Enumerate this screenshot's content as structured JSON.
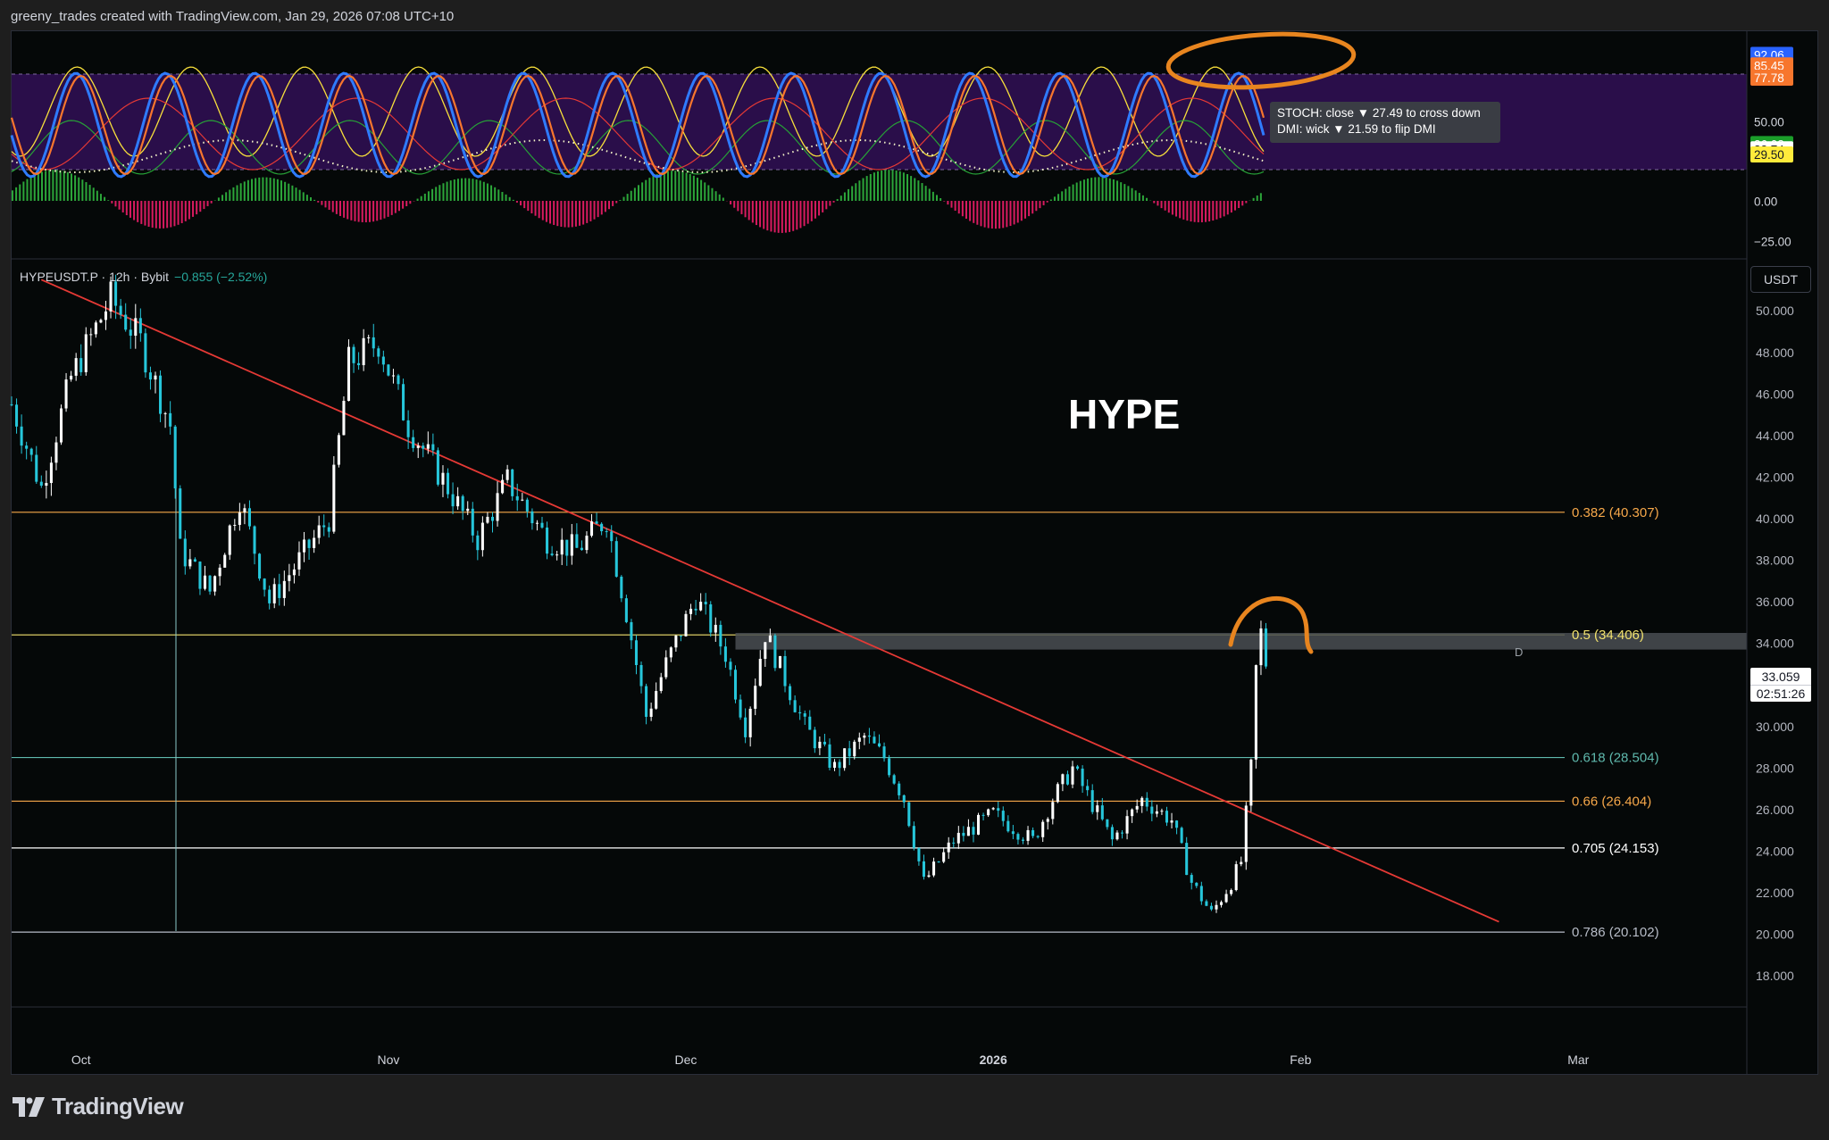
{
  "header": {
    "credit": "greeny_trades created with TradingView.com, Jan 29, 2026 07:08 UTC+10"
  },
  "symbol": {
    "name": "HYPEUSDT.P · 12h · Bybit",
    "change": "−0.855 (−2.52%)",
    "currency": "USDT",
    "last_price": "33.059",
    "countdown": "02:51:26"
  },
  "annotation": {
    "title": "HYPE",
    "marker": "D"
  },
  "tooltip": {
    "line1": "STOCH: close ▼ 27.49 to cross down",
    "line2": "DMI: wick ▼ 21.59 to flip DMI"
  },
  "oscillator_axis": {
    "labels": [
      {
        "value": 92.06,
        "text": "92.06",
        "bg": "#2962ff",
        "fg": "#ffffff"
      },
      {
        "value": 85.8,
        "text": "85.80",
        "bg": "#2962ff",
        "fg": "#ffffff"
      },
      {
        "value": 85.45,
        "text": "85.45",
        "bg": "#f7762d",
        "fg": "#ffffff"
      },
      {
        "value": 77.78,
        "text": "77.78",
        "bg": "#f7762d",
        "fg": "#ffffff"
      },
      {
        "value": 50.0,
        "text": "50.00",
        "bg": "",
        "fg": "#d1d4dc"
      },
      {
        "value": 36.08,
        "text": "36.08",
        "bg": "#1b9e2a",
        "fg": "#ffffff"
      },
      {
        "value": 32.74,
        "text": "32.74",
        "bg": "#ffffff",
        "fg": "#131722"
      },
      {
        "value": 29.5,
        "text": "29.50",
        "bg": "#ffeb3b",
        "fg": "#131722"
      },
      {
        "value": 0.0,
        "text": "0.00",
        "bg": "",
        "fg": "#d1d4dc"
      },
      {
        "value": -25.0,
        "text": "−25.00",
        "bg": "",
        "fg": "#d1d4dc"
      }
    ],
    "band_upper": 80,
    "band_lower": 20
  },
  "chart_data": {
    "type": "candlestick",
    "timeframe": "12h",
    "ylim": [
      16.5,
      52.5
    ],
    "y_ticks": [
      18,
      20,
      22,
      24,
      26,
      28,
      30,
      32,
      34,
      36,
      38,
      40,
      42,
      44,
      46,
      48,
      50
    ],
    "x_ticks": [
      {
        "label": "Oct",
        "date": "2025-10-01",
        "bold": false
      },
      {
        "label": "Nov",
        "date": "2025-11-01",
        "bold": false
      },
      {
        "label": "Dec",
        "date": "2025-12-01",
        "bold": false
      },
      {
        "label": "2026",
        "date": "2026-01-01",
        "bold": true
      },
      {
        "label": "Feb",
        "date": "2026-02-01",
        "bold": false
      },
      {
        "label": "Mar",
        "date": "2026-03-01",
        "bold": false
      }
    ],
    "x_range": [
      "2025-09-24",
      "2026-03-18"
    ],
    "colors": {
      "up": "#ffffff",
      "down": "#26c6da",
      "trendline": "#e53935"
    },
    "price_path": [
      {
        "date": "2025-09-24",
        "close": 45.5
      },
      {
        "date": "2025-09-27",
        "close": 41.5
      },
      {
        "date": "2025-09-30",
        "close": 46.8
      },
      {
        "date": "2025-10-04",
        "close": 50.6
      },
      {
        "date": "2025-10-07",
        "close": 48.5
      },
      {
        "date": "2025-10-10",
        "close": 44.5
      },
      {
        "date": "2025-10-11",
        "close": 38.5
      },
      {
        "date": "2025-10-14",
        "close": 36.5
      },
      {
        "date": "2025-10-17",
        "close": 41.0
      },
      {
        "date": "2025-10-20",
        "close": 36.0
      },
      {
        "date": "2025-10-23",
        "close": 38.0
      },
      {
        "date": "2025-10-26",
        "close": 40.0
      },
      {
        "date": "2025-10-28",
        "close": 47.5
      },
      {
        "date": "2025-10-31",
        "close": 48.5
      },
      {
        "date": "2025-11-03",
        "close": 44.5
      },
      {
        "date": "2025-11-07",
        "close": 41.5
      },
      {
        "date": "2025-11-10",
        "close": 39.0
      },
      {
        "date": "2025-11-13",
        "close": 41.8
      },
      {
        "date": "2025-11-17",
        "close": 39.0
      },
      {
        "date": "2025-11-20",
        "close": 38.5
      },
      {
        "date": "2025-11-23",
        "close": 40.0
      },
      {
        "date": "2025-11-25",
        "close": 35.5
      },
      {
        "date": "2025-11-27",
        "close": 30.5
      },
      {
        "date": "2025-11-29",
        "close": 33.0
      },
      {
        "date": "2025-12-02",
        "close": 36.2
      },
      {
        "date": "2025-12-05",
        "close": 33.5
      },
      {
        "date": "2025-12-07",
        "close": 30.0
      },
      {
        "date": "2025-12-09",
        "close": 34.5
      },
      {
        "date": "2025-12-13",
        "close": 30.0
      },
      {
        "date": "2025-12-16",
        "close": 28.0
      },
      {
        "date": "2025-12-19",
        "close": 29.5
      },
      {
        "date": "2025-12-21",
        "close": 28.5
      },
      {
        "date": "2025-12-23",
        "close": 26.5
      },
      {
        "date": "2025-12-25",
        "close": 22.5
      },
      {
        "date": "2025-12-28",
        "close": 24.5
      },
      {
        "date": "2026-01-01",
        "close": 25.8
      },
      {
        "date": "2026-01-05",
        "close": 24.5
      },
      {
        "date": "2026-01-07",
        "close": 26.5
      },
      {
        "date": "2026-01-09",
        "close": 28.0
      },
      {
        "date": "2026-01-13",
        "close": 24.5
      },
      {
        "date": "2026-01-16",
        "close": 26.5
      },
      {
        "date": "2026-01-19",
        "close": 25.5
      },
      {
        "date": "2026-01-21",
        "close": 22.5
      },
      {
        "date": "2026-01-23",
        "close": 21.0
      },
      {
        "date": "2026-01-25",
        "close": 22.5
      },
      {
        "date": "2026-01-26",
        "close": 23.5
      },
      {
        "date": "2026-01-27",
        "close": 28.0
      },
      {
        "date": "2026-01-27",
        "close": 31.0
      },
      {
        "date": "2026-01-28",
        "close": 34.5
      },
      {
        "date": "2026-01-28",
        "close": 33.059
      }
    ],
    "fib_levels": [
      {
        "ratio": "0.382",
        "price": 40.307,
        "label": "0.382 (40.307)",
        "color": "#f7a84a"
      },
      {
        "ratio": "0.5",
        "price": 34.406,
        "label": "0.5 (34.406)",
        "color": "#f3e36e"
      },
      {
        "ratio": "0.618",
        "price": 28.504,
        "label": "0.618 (28.504)",
        "color": "#5fb9ad"
      },
      {
        "ratio": "0.66",
        "price": 26.404,
        "label": "0.66 (26.404)",
        "color": "#f7a84a"
      },
      {
        "ratio": "0.705",
        "price": 24.153,
        "label": "0.705 (24.153)",
        "color": "#ffffff"
      },
      {
        "ratio": "0.786",
        "price": 20.102,
        "label": "0.786 (20.102)",
        "color": "#b7bcc7"
      }
    ],
    "trendline": [
      {
        "date": "2025-09-27",
        "price": 51.5
      },
      {
        "date": "2026-02-21",
        "price": 20.6
      }
    ],
    "resistance_zone": {
      "from": "2025-12-06",
      "to": "2026-03-18",
      "low": 33.7,
      "high": 34.5
    }
  }
}
